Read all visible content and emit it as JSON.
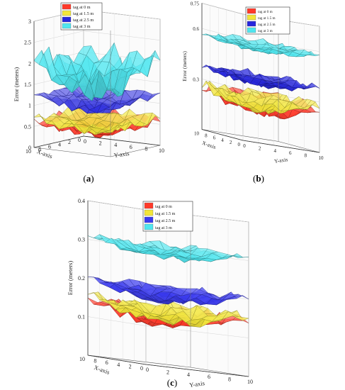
{
  "figure": {
    "captions": [
      {
        "open": "(",
        "letter": "a",
        "close": ")"
      },
      {
        "open": "(",
        "letter": "b",
        "close": ")"
      },
      {
        "open": "(",
        "letter": "c",
        "close": ")"
      }
    ]
  },
  "chart_data": [
    {
      "type": "surface",
      "panel": "a",
      "xlabel": "X-axis",
      "ylabel": "Y-axis",
      "zlabel": "Error (meters)",
      "x_ticks": [
        "10",
        "8",
        "6",
        "4",
        "2",
        "0"
      ],
      "y_ticks": [
        "0",
        "2",
        "4",
        "6",
        "8",
        "10"
      ],
      "z_ticks": [
        "0",
        "0.5",
        "1",
        "1.5",
        "2",
        "2.5",
        "3"
      ],
      "zlim": [
        0,
        3
      ],
      "legend": {
        "position": "top-center"
      },
      "series": [
        {
          "name": "tag at 0 m",
          "color": "#ff3a2a",
          "mean": 0.45,
          "range": [
            0.05,
            0.75
          ]
        },
        {
          "name": "tag at 1.5 m",
          "color": "#f2e63a",
          "mean": 0.5,
          "range": [
            0.1,
            0.8
          ]
        },
        {
          "name": "tag at 2.5 m",
          "color": "#2626dd",
          "mean": 1.05,
          "range": [
            0.4,
            1.25
          ]
        },
        {
          "name": "tag at 3 m",
          "color": "#4fe6ef",
          "mean": 1.6,
          "range": [
            0.9,
            2.5
          ]
        }
      ]
    },
    {
      "type": "surface",
      "panel": "b",
      "xlabel": "X-axis",
      "ylabel": "Y-axis",
      "zlabel": "Error (meters)",
      "x_ticks": [
        "10",
        "8",
        "6",
        "4",
        "2",
        "0"
      ],
      "y_ticks": [
        "0",
        "2",
        "4",
        "6",
        "8",
        "10"
      ],
      "z_ticks": [
        "0.3",
        "0.6",
        "0.75"
      ],
      "zlim": [
        0,
        0.75
      ],
      "legend": {
        "position": "top-center"
      },
      "series": [
        {
          "name": "tag at 0 m",
          "color": "#ff3a2a",
          "mean": 0.2,
          "range": [
            0.1,
            0.3
          ]
        },
        {
          "name": "tag at 1.5 m",
          "color": "#f2e63a",
          "mean": 0.22,
          "range": [
            0.12,
            0.3
          ]
        },
        {
          "name": "tag at 2.5 m",
          "color": "#2626dd",
          "mean": 0.35,
          "range": [
            0.3,
            0.42
          ]
        },
        {
          "name": "tag at 3 m",
          "color": "#4fe6ef",
          "mean": 0.55,
          "range": [
            0.5,
            0.6
          ]
        }
      ]
    },
    {
      "type": "surface",
      "panel": "c",
      "xlabel": "X-axis",
      "ylabel": "Y-axis",
      "zlabel": "Error (meters)",
      "x_ticks": [
        "10",
        "8",
        "6",
        "4",
        "2",
        "0"
      ],
      "y_ticks": [
        "0",
        "2",
        "4",
        "6",
        "8",
        "10"
      ],
      "z_ticks": [
        "0.1",
        "0.2",
        "0.3",
        "0.4"
      ],
      "zlim": [
        0,
        0.4
      ],
      "legend": {
        "position": "top-left"
      },
      "series": [
        {
          "name": "tag at 0 m",
          "color": "#ff3a2a",
          "mean": 0.12,
          "range": [
            0.08,
            0.16
          ]
        },
        {
          "name": "tag at 1.5 m",
          "color": "#f2e63a",
          "mean": 0.13,
          "range": [
            0.09,
            0.17
          ]
        },
        {
          "name": "tag at 2.5 m",
          "color": "#3a3af0",
          "mean": 0.18,
          "range": [
            0.15,
            0.22
          ]
        },
        {
          "name": "tag at 3 m",
          "color": "#4fe6ef",
          "mean": 0.29,
          "range": [
            0.26,
            0.32
          ]
        }
      ]
    }
  ]
}
